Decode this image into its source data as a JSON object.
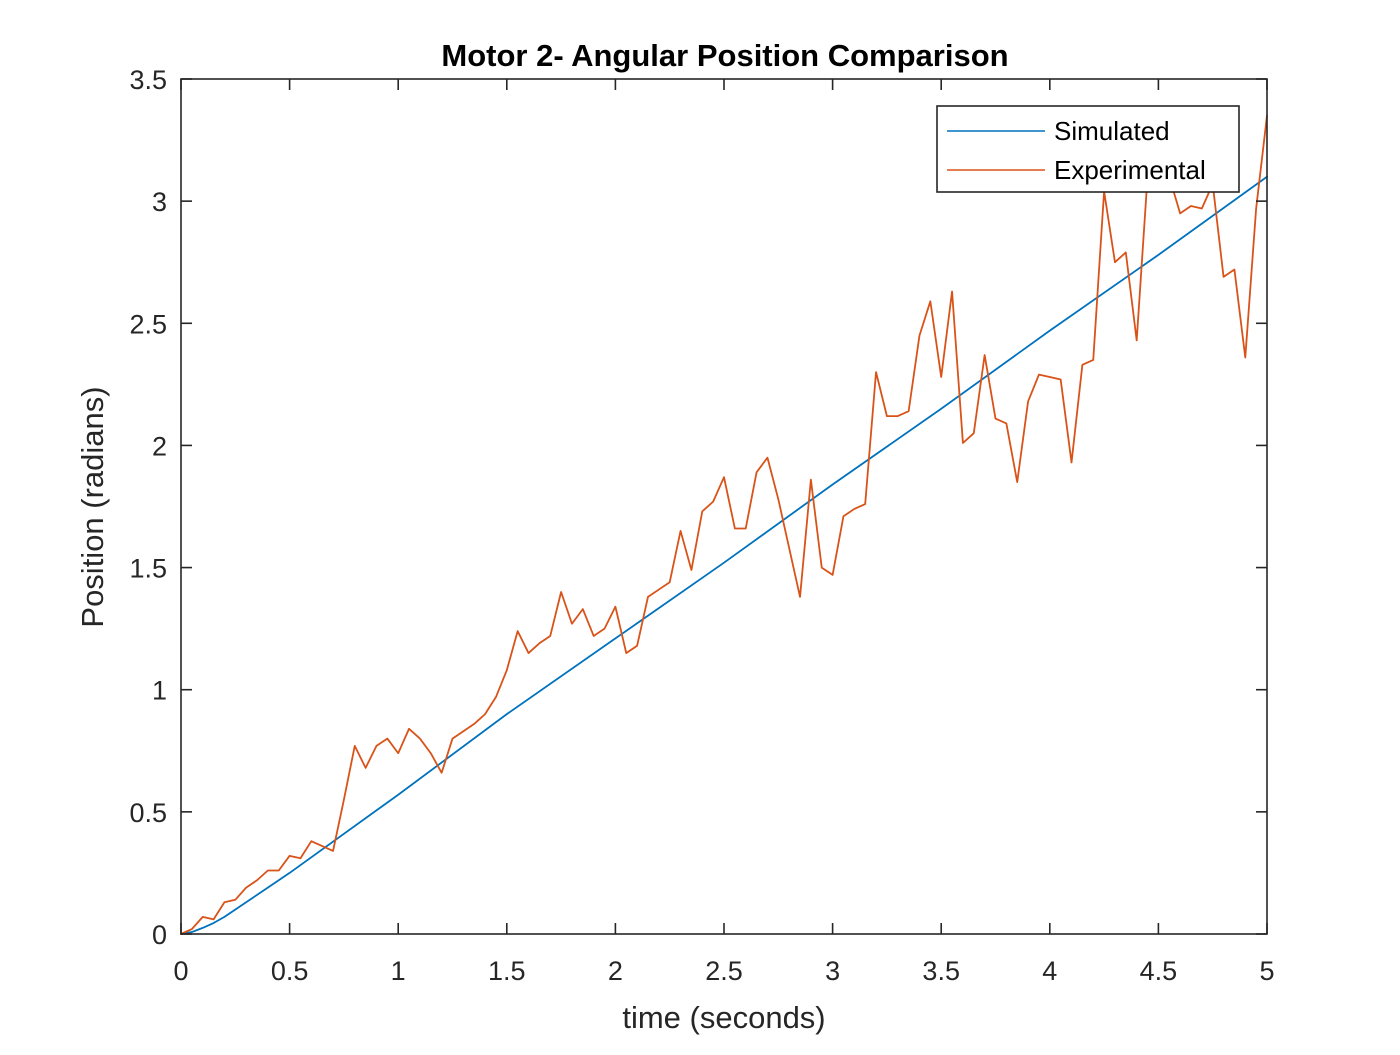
{
  "chart_data": {
    "type": "line",
    "title": "Motor 2- Angular Position Comparison",
    "xlabel": "time (seconds)",
    "ylabel": "Position (radians)",
    "xlim": [
      0,
      5
    ],
    "ylim": [
      0,
      3.5
    ],
    "xticks": [
      0,
      0.5,
      1,
      1.5,
      2,
      2.5,
      3,
      3.5,
      4,
      4.5,
      5
    ],
    "xtick_labels": [
      "0",
      "0.5",
      "1",
      "1.5",
      "2",
      "2.5",
      "3",
      "3.5",
      "4",
      "4.5",
      "5"
    ],
    "yticks": [
      0,
      0.5,
      1,
      1.5,
      2,
      2.5,
      3,
      3.5
    ],
    "ytick_labels": [
      "0",
      "0.5",
      "1",
      "1.5",
      "2",
      "2.5",
      "3",
      "3.5"
    ],
    "grid": false,
    "box": true,
    "legend_position": "top-right",
    "series": [
      {
        "name": "Simulated",
        "color": "#0072BD",
        "x": [
          0,
          0.05,
          0.1,
          0.15,
          0.2,
          0.3,
          0.5,
          1,
          1.5,
          2,
          2.5,
          3,
          3.5,
          4,
          4.5,
          5
        ],
        "y": [
          0,
          0.008,
          0.025,
          0.045,
          0.07,
          0.13,
          0.25,
          0.57,
          0.9,
          1.21,
          1.52,
          1.84,
          2.15,
          2.47,
          2.78,
          3.1
        ]
      },
      {
        "name": "Experimental",
        "color": "#D95319",
        "x": [
          0,
          0.05,
          0.1,
          0.15,
          0.2,
          0.25,
          0.3,
          0.35,
          0.4,
          0.45,
          0.5,
          0.55,
          0.6,
          0.65,
          0.7,
          0.75,
          0.8,
          0.85,
          0.9,
          0.95,
          1,
          1.05,
          1.1,
          1.15,
          1.2,
          1.25,
          1.3,
          1.35,
          1.4,
          1.45,
          1.5,
          1.55,
          1.6,
          1.65,
          1.7,
          1.75,
          1.8,
          1.85,
          1.9,
          1.95,
          2,
          2.05,
          2.1,
          2.15,
          2.2,
          2.25,
          2.3,
          2.35,
          2.4,
          2.45,
          2.5,
          2.55,
          2.6,
          2.65,
          2.7,
          2.75,
          2.8,
          2.85,
          2.9,
          2.95,
          3,
          3.05,
          3.1,
          3.15,
          3.2,
          3.25,
          3.3,
          3.35,
          3.4,
          3.45,
          3.5,
          3.55,
          3.6,
          3.65,
          3.7,
          3.75,
          3.8,
          3.85,
          3.9,
          3.95,
          4,
          4.05,
          4.1,
          4.15,
          4.2,
          4.25,
          4.3,
          4.35,
          4.4,
          4.45,
          4.5,
          4.55,
          4.6,
          4.65,
          4.7,
          4.75,
          4.8,
          4.85,
          4.9,
          4.95,
          5
        ],
        "y": [
          0,
          0.02,
          0.07,
          0.06,
          0.13,
          0.14,
          0.19,
          0.22,
          0.26,
          0.26,
          0.32,
          0.31,
          0.38,
          0.36,
          0.34,
          0.55,
          0.77,
          0.68,
          0.77,
          0.8,
          0.74,
          0.84,
          0.8,
          0.74,
          0.66,
          0.8,
          0.83,
          0.86,
          0.9,
          0.97,
          1.08,
          1.24,
          1.15,
          1.19,
          1.22,
          1.4,
          1.27,
          1.33,
          1.22,
          1.25,
          1.34,
          1.15,
          1.18,
          1.38,
          1.41,
          1.44,
          1.65,
          1.49,
          1.73,
          1.77,
          1.87,
          1.66,
          1.66,
          1.89,
          1.95,
          1.78,
          1.58,
          1.38,
          1.86,
          1.5,
          1.47,
          1.71,
          1.74,
          1.76,
          2.3,
          2.12,
          2.12,
          2.14,
          2.45,
          2.59,
          2.28,
          2.63,
          2.01,
          2.05,
          2.37,
          2.11,
          2.09,
          1.85,
          2.18,
          2.29,
          2.28,
          2.27,
          1.93,
          2.33,
          2.35,
          3.04,
          2.75,
          2.79,
          2.43,
          3.1,
          3.28,
          3.1,
          2.95,
          2.98,
          2.97,
          3.07,
          2.69,
          2.72,
          2.36,
          2.97,
          3.35
        ]
      }
    ]
  }
}
